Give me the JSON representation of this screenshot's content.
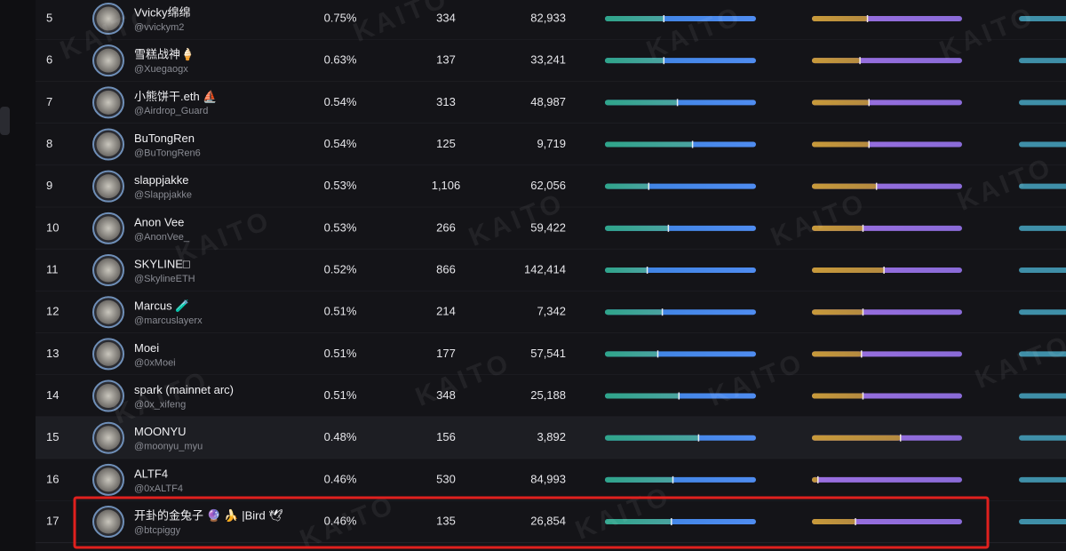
{
  "watermark": "KAITO",
  "table": {
    "rows": [
      {
        "rank": "5",
        "name": "Vvicky绵绵",
        "handle": "@vvickym2",
        "mindshare": "0.75%",
        "col_a": "334",
        "col_b": "82,933",
        "split_a": 0.39,
        "split_b": 0.37
      },
      {
        "rank": "6",
        "name": "雪糕战神🍦",
        "handle": "@Xuegaogx",
        "mindshare": "0.63%",
        "col_a": "137",
        "col_b": "33,241",
        "split_a": 0.39,
        "split_b": 0.32
      },
      {
        "rank": "7",
        "name": "小熊饼干.eth ⛵",
        "handle": "@Airdrop_Guard",
        "mindshare": "0.54%",
        "col_a": "313",
        "col_b": "48,987",
        "split_a": 0.48,
        "split_b": 0.38
      },
      {
        "rank": "8",
        "name": "BuTongRen",
        "handle": "@BuTongRen6",
        "mindshare": "0.54%",
        "col_a": "125",
        "col_b": "9,719",
        "split_a": 0.58,
        "split_b": 0.38
      },
      {
        "rank": "9",
        "name": "slappjakke",
        "handle": "@Slappjakke",
        "mindshare": "0.53%",
        "col_a": "1,106",
        "col_b": "62,056",
        "split_a": 0.29,
        "split_b": 0.43
      },
      {
        "rank": "10",
        "name": "Anon Vee",
        "handle": "@AnonVee_",
        "mindshare": "0.53%",
        "col_a": "266",
        "col_b": "59,422",
        "split_a": 0.42,
        "split_b": 0.34
      },
      {
        "rank": "11",
        "name": "SKYLINE□",
        "handle": "@SkylineETH",
        "mindshare": "0.52%",
        "col_a": "866",
        "col_b": "142,414",
        "split_a": 0.28,
        "split_b": 0.48
      },
      {
        "rank": "12",
        "name": "Marcus 🧪",
        "handle": "@marcuslayerx",
        "mindshare": "0.51%",
        "col_a": "214",
        "col_b": "7,342",
        "split_a": 0.38,
        "split_b": 0.34
      },
      {
        "rank": "13",
        "name": "Moei",
        "handle": "@0xMoei",
        "mindshare": "0.51%",
        "col_a": "177",
        "col_b": "57,541",
        "split_a": 0.35,
        "split_b": 0.33
      },
      {
        "rank": "14",
        "name": "spark (mainnet arc)",
        "handle": "@0x_xifeng",
        "mindshare": "0.51%",
        "col_a": "348",
        "col_b": "25,188",
        "split_a": 0.49,
        "split_b": 0.34
      },
      {
        "rank": "15",
        "name": "MOONYU",
        "handle": "@moonyu_myu",
        "mindshare": "0.48%",
        "col_a": "156",
        "col_b": "3,892",
        "split_a": 0.62,
        "split_b": 0.59
      },
      {
        "rank": "16",
        "name": "ALTF4",
        "handle": "@0xALTF4",
        "mindshare": "0.46%",
        "col_a": "530",
        "col_b": "84,993",
        "split_a": 0.45,
        "split_b": 0.04
      },
      {
        "rank": "17",
        "name": "开卦的金兔子 🔮 🍌 |Bird 🕊",
        "handle": "@btcpiggy",
        "mindshare": "0.46%",
        "col_a": "135",
        "col_b": "26,854",
        "split_a": 0.44,
        "split_b": 0.29
      }
    ]
  }
}
